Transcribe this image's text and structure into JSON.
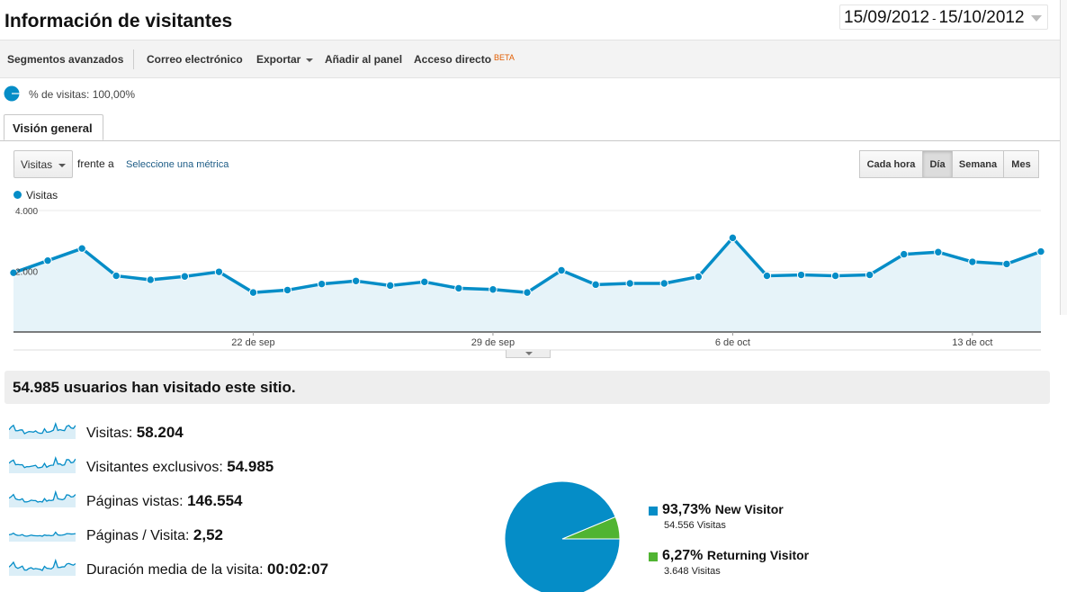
{
  "header": {
    "title": "Información de visitantes",
    "date_start": "15/09/2012",
    "date_sep": "-",
    "date_end": "15/10/2012"
  },
  "toolbar": {
    "advanced_segments": "Segmentos avanzados",
    "email": "Correo electrónico",
    "export": "Exportar",
    "add_to_dashboard": "Añadir al panel",
    "shortcut": "Acceso directo",
    "beta": "BETA"
  },
  "segment": {
    "label": "% de visitas: 100,00%"
  },
  "tabs": [
    {
      "label": "Visión general"
    }
  ],
  "controls": {
    "metric": "Visitas",
    "vs": "frente a",
    "select_metric": "Seleccione una métrica",
    "granularity": [
      {
        "label": "Cada hora",
        "active": false
      },
      {
        "label": "Día",
        "active": true
      },
      {
        "label": "Semana",
        "active": false
      },
      {
        "label": "Mes",
        "active": false
      }
    ]
  },
  "chart_data": {
    "type": "area",
    "series": [
      {
        "name": "Visitas",
        "color": "#058dc7",
        "values": [
          1950,
          2350,
          2750,
          1850,
          1720,
          1830,
          1980,
          1300,
          1380,
          1580,
          1680,
          1530,
          1650,
          1440,
          1400,
          1300,
          2030,
          1560,
          1600,
          1600,
          1820,
          3100,
          1850,
          1880,
          1850,
          1880,
          2560,
          2630,
          2310,
          2240,
          2650
        ]
      }
    ],
    "y_ticks": [
      "4.000",
      "2.000"
    ],
    "ylim": [
      0,
      4000
    ],
    "x_ticks": [
      {
        "index": 7,
        "label": "22 de sep"
      },
      {
        "index": 14,
        "label": "29 de sep"
      },
      {
        "index": 21,
        "label": "6 de oct"
      },
      {
        "index": 28,
        "label": "13 de oct"
      }
    ],
    "grid": true
  },
  "summary": {
    "headline": "54.985 usuarios han visitado este sitio."
  },
  "metrics": [
    {
      "label": "Visitas:",
      "value": "58.204"
    },
    {
      "label": "Visitantes exclusivos:",
      "value": "54.985"
    },
    {
      "label": "Páginas vistas:",
      "value": "146.554"
    },
    {
      "label": "Páginas / Visita:",
      "value": "2,52"
    },
    {
      "label": "Duración media de la visita:",
      "value": "00:02:07"
    }
  ],
  "pie": {
    "slices": [
      {
        "pct": "93,73%",
        "name": "New Visitor",
        "visits": "54.556 Visitas",
        "value": 93.73,
        "color": "#058dc7"
      },
      {
        "pct": "6,27%",
        "name": "Returning Visitor",
        "visits": "3.648 Visitas",
        "value": 6.27,
        "color": "#50b432"
      }
    ]
  },
  "colors": {
    "accent": "#058dc7",
    "area_fill": "#e6f3f9",
    "link": "#1d5c86",
    "beta": "#e25d00"
  }
}
